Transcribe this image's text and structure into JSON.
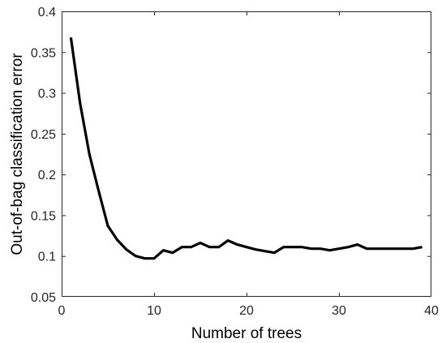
{
  "chart_data": {
    "type": "line",
    "title": "",
    "xlabel": "Number of trees",
    "ylabel": "Out-of-bag classification error",
    "xlim": [
      0,
      40
    ],
    "ylim": [
      0.05,
      0.4
    ],
    "x_ticks": [
      0,
      10,
      20,
      30,
      40
    ],
    "y_ticks": [
      0.05,
      0.1,
      0.15,
      0.2,
      0.25,
      0.3,
      0.35,
      0.4
    ],
    "x_tick_labels": [
      "0",
      "10",
      "20",
      "30",
      "40"
    ],
    "y_tick_labels": [
      "0.05",
      "0.1",
      "0.15",
      "0.2",
      "0.25",
      "0.3",
      "0.35",
      "0.4"
    ],
    "grid": false,
    "box": true,
    "series": [
      {
        "color": "#000000",
        "x": [
          1,
          2,
          3,
          4,
          5,
          6,
          7,
          8,
          9,
          10,
          11,
          12,
          13,
          14,
          15,
          16,
          17,
          18,
          19,
          20,
          21,
          22,
          23,
          24,
          25,
          26,
          27,
          28,
          29,
          30,
          31,
          32,
          33,
          34,
          35,
          36,
          37,
          38,
          39
        ],
        "y": [
          0.368,
          0.287,
          0.225,
          0.18,
          0.137,
          0.12,
          0.108,
          0.1,
          0.097,
          0.097,
          0.107,
          0.104,
          0.111,
          0.111,
          0.116,
          0.111,
          0.111,
          0.119,
          0.114,
          0.111,
          0.108,
          0.106,
          0.104,
          0.111,
          0.111,
          0.111,
          0.109,
          0.109,
          0.107,
          0.109,
          0.111,
          0.114,
          0.109,
          0.109,
          0.109,
          0.109,
          0.109,
          0.109,
          0.111
        ]
      }
    ]
  }
}
